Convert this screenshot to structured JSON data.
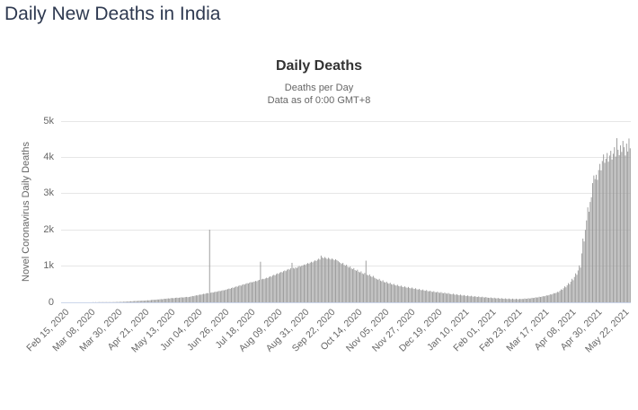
{
  "page": {
    "title": "Daily New Deaths in India"
  },
  "chart": {
    "title": "Daily Deaths",
    "subtitle1": "Deaths per Day",
    "subtitle2": "Data as of 0:00 GMT+8",
    "y_axis_title": "Novel Coronavirus Daily Deaths",
    "y_tick_labels": [
      "0",
      "1k",
      "2k",
      "3k",
      "4k",
      "5k"
    ],
    "colors": {
      "bar": "#999999",
      "gridline": "#e6e6e6",
      "axis_line": "#ccd6eb",
      "title": "#333333",
      "subtitle": "#666666",
      "axis_label": "#666666",
      "page_title": "#2e3950"
    }
  },
  "chart_data": {
    "type": "bar",
    "title": "Daily Deaths",
    "subtitle": [
      "Deaths per Day",
      "Data as of 0:00 GMT+8"
    ],
    "xlabel": "",
    "ylabel": "Novel Coronavirus Daily Deaths",
    "ylim": [
      0,
      5000
    ],
    "grid": true,
    "legend": false,
    "start_date": "2020-02-15",
    "x_tick_interval_days": 22,
    "x_tick_labels": [
      "Feb 15, 2020",
      "Mar 08, 2020",
      "Mar 30, 2020",
      "Apr 21, 2020",
      "May 13, 2020",
      "Jun 04, 2020",
      "Jun 26, 2020",
      "Jul 18, 2020",
      "Aug 09, 2020",
      "Aug 31, 2020",
      "Sep 22, 2020",
      "Oct 14, 2020",
      "Nov 05, 2020",
      "Nov 27, 2020",
      "Dec 19, 2020",
      "Jan 10, 2021",
      "Feb 01, 2021",
      "Feb 23, 2021",
      "Mar 17, 2021",
      "Apr 08, 2021",
      "Apr 30, 2021",
      "May 22, 2021"
    ],
    "series": [
      {
        "name": "Daily Deaths",
        "values": [
          0,
          0,
          0,
          0,
          0,
          0,
          0,
          0,
          0,
          0,
          0,
          0,
          0,
          0,
          0,
          0,
          0,
          0,
          0,
          0,
          0,
          0,
          0,
          0,
          0,
          0,
          1,
          0,
          1,
          0,
          1,
          2,
          1,
          2,
          3,
          2,
          3,
          3,
          4,
          5,
          4,
          6,
          7,
          8,
          9,
          10,
          12,
          11,
          13,
          15,
          14,
          17,
          19,
          21,
          20,
          24,
          27,
          30,
          28,
          33,
          36,
          38,
          35,
          40,
          43,
          41,
          45,
          48,
          44,
          50,
          54,
          57,
          52,
          60,
          65,
          70,
          72,
          68,
          75,
          80,
          78,
          85,
          90,
          83,
          95,
          100,
          96,
          105,
          110,
          103,
          115,
          120,
          112,
          118,
          125,
          130,
          122,
          128,
          135,
          140,
          132,
          138,
          145,
          150,
          142,
          148,
          155,
          165,
          175,
          170,
          185,
          195,
          190,
          205,
          215,
          210,
          225,
          235,
          230,
          245,
          255,
          250,
          2004,
          265,
          275,
          270,
          285,
          295,
          290,
          305,
          315,
          310,
          325,
          335,
          330,
          345,
          355,
          365,
          380,
          372,
          395,
          410,
          400,
          425,
          440,
          430,
          455,
          470,
          458,
          485,
          500,
          490,
          515,
          530,
          520,
          545,
          560,
          550,
          565,
          575,
          590,
          580,
          605,
          620,
          1120,
          635,
          650,
          640,
          660,
          680,
          668,
          700,
          720,
          705,
          740,
          760,
          745,
          780,
          800,
          785,
          820,
          840,
          825,
          860,
          880,
          862,
          900,
          920,
          902,
          940,
          1090,
          950,
          930,
          965,
          945,
          980,
          1005,
          985,
          1010,
          1020,
          1045,
          1030,
          1060,
          1085,
          1065,
          1095,
          1120,
          1100,
          1130,
          1160,
          1140,
          1175,
          1205,
          1180,
          1290,
          1240,
          1215,
          1250,
          1222,
          1195,
          1230,
          1205,
          1180,
          1210,
          1185,
          1160,
          1190,
          1165,
          1140,
          1110,
          1085,
          1060,
          1090,
          1035,
          1010,
          1040,
          985,
          960,
          990,
          935,
          915,
          945,
          890,
          870,
          900,
          845,
          825,
          855,
          800,
          780,
          810,
          1150,
          760,
          740,
          770,
          720,
          700,
          730,
          680,
          660,
          640,
          620,
          648,
          600,
          580,
          608,
          560,
          545,
          570,
          530,
          515,
          540,
          500,
          488,
          510,
          475,
          462,
          485,
          450,
          440,
          462,
          430,
          420,
          442,
          412,
          402,
          425,
          395,
          385,
          408,
          380,
          370,
          390,
          360,
          350,
          372,
          342,
          334,
          355,
          325,
          318,
          338,
          310,
          302,
          322,
          296,
          288,
          308,
          282,
          275,
          295,
          270,
          262,
          282,
          258,
          250,
          270,
          246,
          238,
          258,
          235,
          228,
          220,
          240,
          215,
          208,
          226,
          202,
          196,
          214,
          190,
          185,
          202,
          180,
          174,
          192,
          170,
          165,
          182,
          160,
          156,
          172,
          152,
          148,
          164,
          145,
          140,
          156,
          138,
          133,
          148,
          130,
          126,
          121,
          136,
          118,
          114,
          128,
          111,
          108,
          122,
          105,
          102,
          116,
          100,
          97,
          110,
          95,
          92,
          106,
          91,
          89,
          102,
          88,
          86,
          100,
          87,
          85,
          98,
          90,
          95,
          92,
          108,
          98,
          100,
          115,
          105,
          110,
          126,
          118,
          124,
          140,
          132,
          138,
          155,
          148,
          154,
          172,
          165,
          175,
          195,
          188,
          200,
          222,
          215,
          230,
          255,
          248,
          264,
          290,
          280,
          320,
          360,
          345,
          390,
          440,
          415,
          470,
          530,
          500,
          570,
          650,
          610,
          700,
          800,
          760,
          880,
          1020,
          960,
          1350,
          1760,
          1680,
          2000,
          2260,
          2620,
          2500,
          2770,
          2900,
          3290,
          3500,
          3400,
          3520,
          3380,
          3650,
          3820,
          3640,
          3900,
          4080,
          3850,
          3960,
          4120,
          3880,
          4050,
          4180,
          3940,
          4100,
          4280,
          4020,
          4529,
          4210,
          4060,
          4330,
          4150,
          4454,
          4280,
          4050,
          4380,
          4160,
          4520,
          4250
        ]
      }
    ]
  }
}
